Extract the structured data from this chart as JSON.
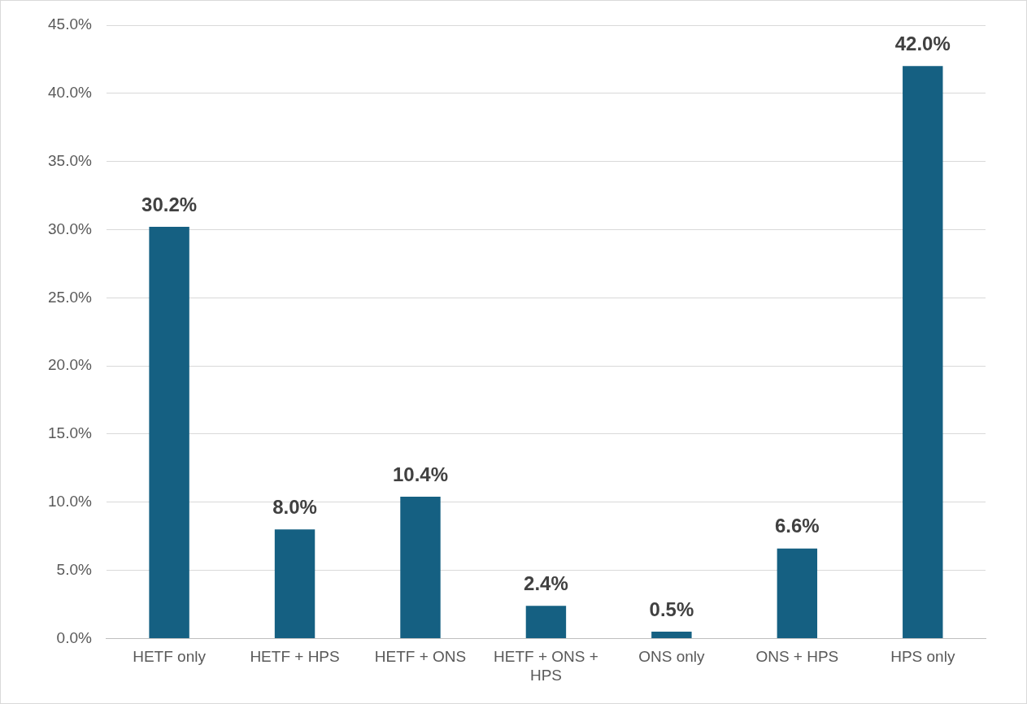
{
  "chart_data": {
    "type": "bar",
    "categories": [
      "HETF only",
      "HETF + HPS",
      "HETF + ONS",
      "HETF + ONS + HPS",
      "ONS only",
      "ONS + HPS",
      "HPS only"
    ],
    "values": [
      30.2,
      8.0,
      10.4,
      2.4,
      0.5,
      6.6,
      42.0
    ],
    "value_labels": [
      "30.2%",
      "8.0%",
      "10.4%",
      "2.4%",
      "0.5%",
      "6.6%",
      "42.0%"
    ],
    "color": "#156082",
    "ylim": [
      0,
      45
    ],
    "yticks": [
      {
        "value": 0,
        "label": "0.0%"
      },
      {
        "value": 5,
        "label": "5.0%"
      },
      {
        "value": 10,
        "label": "10.0%"
      },
      {
        "value": 15,
        "label": "15.0%"
      },
      {
        "value": 20,
        "label": "20.0%"
      },
      {
        "value": 25,
        "label": "25.0%"
      },
      {
        "value": 30,
        "label": "30.0%"
      },
      {
        "value": 35,
        "label": "35.0%"
      },
      {
        "value": 40,
        "label": "40.0%"
      },
      {
        "value": 45,
        "label": "45.0%"
      }
    ],
    "grid": "y",
    "legend": false
  }
}
